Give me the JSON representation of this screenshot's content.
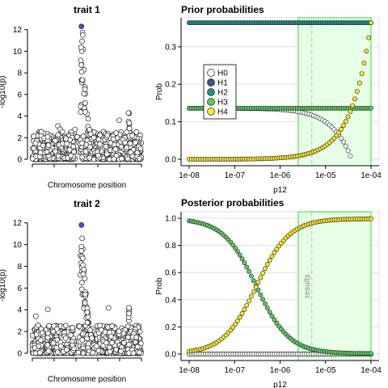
{
  "colors": {
    "H0": "#ffffff",
    "H1": "#3b528b",
    "H2": "#21908c",
    "H3": "#5dc863",
    "H4": "#fde725",
    "lead_snp": "#4b4bd6",
    "region_fill": "#e6ffe6",
    "region_edge": "#33dd33",
    "results_line": "#bbbbbb",
    "grid": "#d9d9d9"
  },
  "chart_data": [
    {
      "id": "trait1",
      "type": "scatter",
      "title": "trait 1",
      "xlabel": "Chromosome position",
      "ylabel": "-log10(p)",
      "ylim": [
        0,
        12.5
      ],
      "yticks": [
        "0",
        "2",
        "4",
        "6",
        "8",
        "10",
        "12"
      ],
      "x_ticks_labeled": false,
      "lead_snp": {
        "x": 0.45,
        "y": 12.3
      },
      "peak_center": 0.46,
      "peak_height": 12.1,
      "background_level": 0.8
    },
    {
      "id": "trait2",
      "type": "scatter",
      "title": "trait 2",
      "xlabel": "Chromosome position",
      "ylabel": "-log10(p)",
      "ylim": [
        0,
        12.5
      ],
      "yticks": [
        "0",
        "2",
        "4",
        "6",
        "8",
        "10",
        "12"
      ],
      "x_ticks_labeled": false,
      "lead_snp": {
        "x": 0.45,
        "y": 11.8
      },
      "peak_center": 0.46,
      "peak_height": 11.5,
      "background_level": 0.8
    },
    {
      "id": "prior",
      "type": "scatter",
      "title": "Prior probabilities",
      "xlabel": "p12",
      "ylabel": "Prob",
      "x_scale": "log",
      "xlim": [
        1e-08,
        0.0001
      ],
      "ylim": [
        0,
        0.36
      ],
      "xticks": [
        "1e-08",
        "1e-07",
        "1e-06",
        "1e-05",
        "1e-04"
      ],
      "yticks": [
        "0.0",
        "0.1",
        "0.2",
        "0.3"
      ],
      "grid": true,
      "legend": {
        "position": "left",
        "entries": [
          "H0",
          "H1",
          "H2",
          "H3",
          "H4"
        ]
      },
      "region": {
        "x_from": 2.5e-06,
        "x_to": 0.0001
      },
      "results_x": 5e-06,
      "results_label": "",
      "series": [
        {
          "name": "H0",
          "shape": "prior_h0",
          "values_at_ticks": [
            0.136,
            0.136,
            0.133,
            0.107,
            0.0
          ]
        },
        {
          "name": "H1",
          "shape": "constant",
          "value": 0.364
        },
        {
          "name": "H2",
          "shape": "constant",
          "value": 0.364
        },
        {
          "name": "H3",
          "shape": "constant",
          "value": 0.136
        },
        {
          "name": "H4",
          "shape": "prior_h4",
          "values_at_ticks": [
            0.0,
            0.0,
            0.0033,
            0.0297,
            0.364
          ]
        }
      ]
    },
    {
      "id": "posterior",
      "type": "scatter",
      "title": "Posterior probabilities",
      "xlabel": "p12",
      "ylabel": "Prob",
      "x_scale": "log",
      "xlim": [
        1e-08,
        0.0001
      ],
      "ylim": [
        0,
        1.0
      ],
      "xticks": [
        "1e-08",
        "1e-07",
        "1e-06",
        "1e-05",
        "1e-04"
      ],
      "yticks": [
        "0.0",
        "0.2",
        "0.4",
        "0.6",
        "0.8",
        "1.0"
      ],
      "grid": true,
      "region": {
        "x_from": 2.5e-06,
        "x_to": 0.0001
      },
      "results_x": 5e-06,
      "results_label": "results",
      "series": [
        {
          "name": "H0",
          "shape": "constant",
          "value": 0.0
        },
        {
          "name": "H1",
          "shape": "constant",
          "value": 0.0
        },
        {
          "name": "H2",
          "shape": "constant",
          "value": 0.0
        },
        {
          "name": "H3",
          "shape": "sigmoid_down",
          "value_at_1e-08": 0.965,
          "crossover_x": 3e-07,
          "value_at_1e-04": 0.003
        },
        {
          "name": "H4",
          "shape": "sigmoid_up",
          "value_at_1e-08": 0.035,
          "crossover_x": 3e-07,
          "value_at_1e-04": 0.997
        }
      ]
    }
  ]
}
